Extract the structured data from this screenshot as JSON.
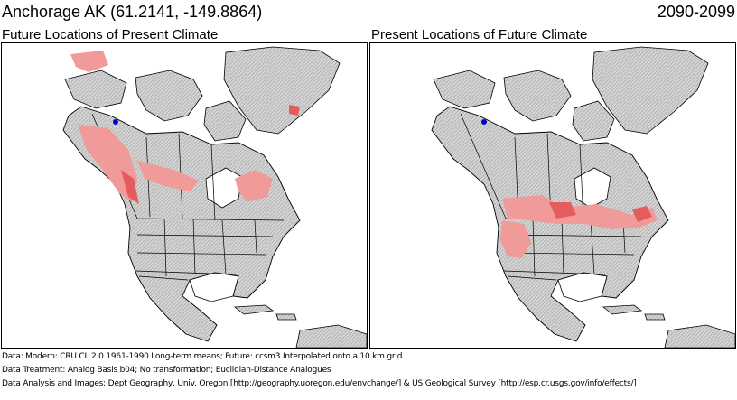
{
  "header": {
    "title": "Anchorage AK  (61.2141, -149.8864)",
    "period": "2090-2099"
  },
  "panels": {
    "left_title": "Future Locations of Present Climate",
    "right_title": "Present Locations of Future Climate"
  },
  "colors": {
    "land": "#d4d4d4",
    "hillshade": "#b3b3b3",
    "ocean": "#ffffff",
    "analog": "#f09a9a",
    "analog_strong": "#e45c5c",
    "boundary": "#000000",
    "marker": "#0000cc"
  },
  "footer": {
    "line1": "Data:  Modern: CRU CL 2.0 1961-1990 Long-term means; Future: ccsm3 Interpolated onto a 10 km grid",
    "line2": "Data Treatment:  Analog Basis b04; No transformation; Euclidian-Distance Analogues",
    "line3": "Data Analysis and Images:  Dept Geography, Univ. Oregon [http://geography.uoregon.edu/envchange/] & US Geological Survey [http://esp.cr.usgs.gov/info/effects/]"
  }
}
